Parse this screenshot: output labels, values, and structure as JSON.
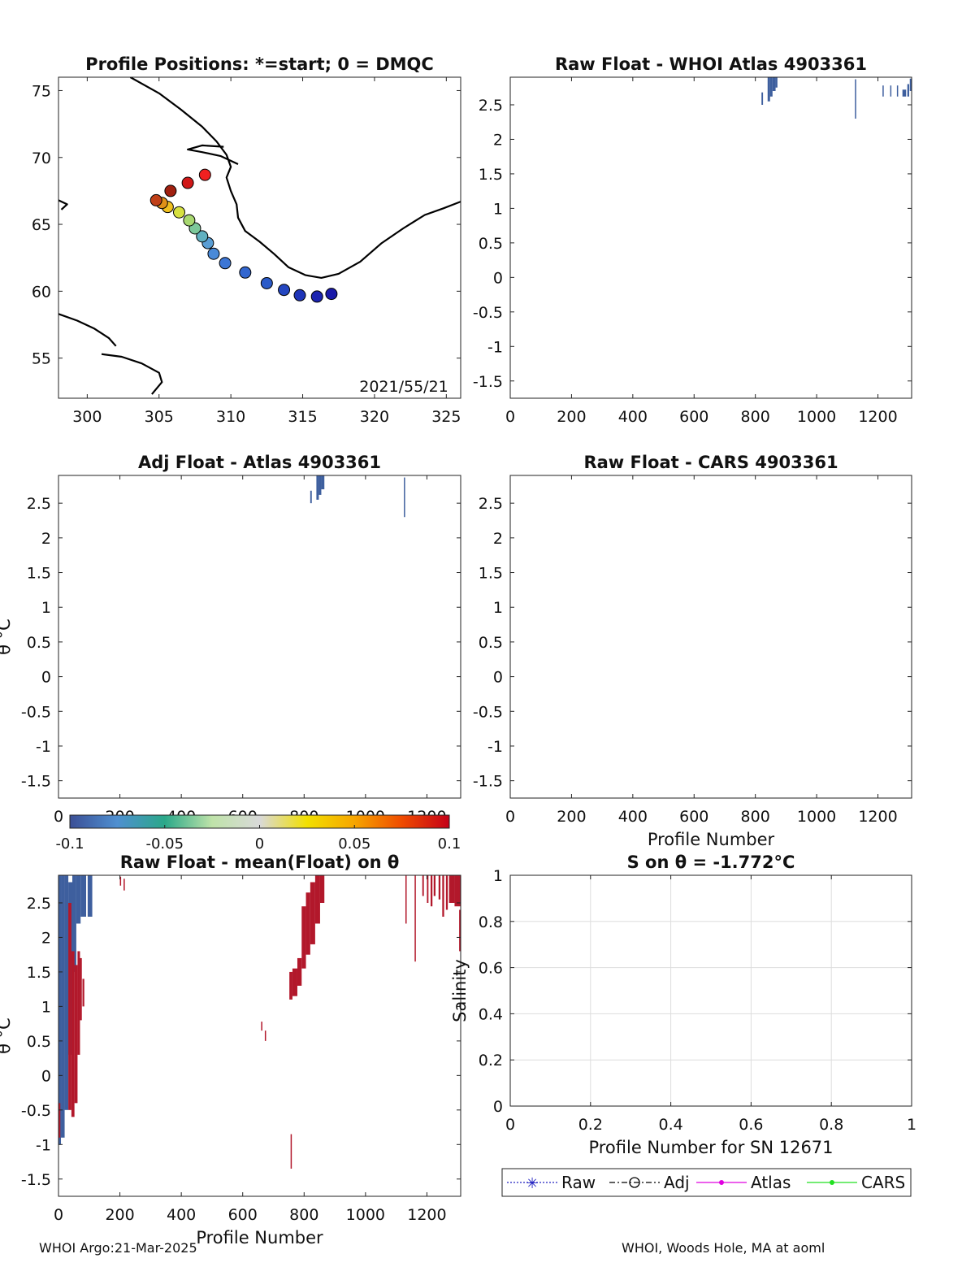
{
  "footer": {
    "left": "WHOI Argo:21-Mar-2025",
    "right": "WHOI, Woods Hole, MA at aoml"
  },
  "colors": {
    "negative": "#3e5f9e",
    "positive": "#b2182b",
    "map_line": "#000000",
    "grid": "#dddddd"
  },
  "colorbar": {
    "min": -0.1,
    "max": 0.1,
    "tick_values": [
      -0.1,
      -0.05,
      0,
      0.05,
      0.1
    ],
    "tick_labels": [
      "-0.1",
      "-0.05",
      "0",
      "0.05",
      "0.1"
    ],
    "stops": [
      "#3b4f96",
      "#4f8fd0",
      "#2aa889",
      "#bfe3a9",
      "#d9d9d9",
      "#f2e000",
      "#f6a500",
      "#ef4b00",
      "#c40018"
    ]
  },
  "chart_data": [
    {
      "id": "map",
      "type": "scatter",
      "title": "Profile Positions: *=start; 0 = DMQC",
      "xlabel": "",
      "ylabel": "",
      "xlim": [
        298,
        326
      ],
      "ylim": [
        52,
        76
      ],
      "xticks": [
        300,
        305,
        310,
        315,
        320,
        325
      ],
      "xtick_labels": [
        "300",
        "305",
        "310",
        "315",
        "320",
        "325"
      ],
      "yticks": [
        55,
        60,
        65,
        70,
        75
      ],
      "ytick_labels": [
        "55",
        "60",
        "65",
        "70",
        "75"
      ],
      "annotation": "2021/55/21",
      "coastline": [
        [
          [
            303,
            76
          ],
          [
            305,
            74.8
          ],
          [
            306.5,
            73.6
          ],
          [
            308,
            72.3
          ],
          [
            309,
            71.2
          ],
          [
            309.7,
            70.2
          ],
          [
            310,
            69.3
          ],
          [
            309.7,
            68.5
          ],
          [
            310,
            67.5
          ],
          [
            310.4,
            66.5
          ],
          [
            310.5,
            65.5
          ],
          [
            311,
            64.5
          ],
          [
            312,
            63.7
          ],
          [
            313,
            62.8
          ],
          [
            314,
            61.8
          ],
          [
            315.2,
            61.2
          ],
          [
            316.3,
            61.0
          ],
          [
            317.5,
            61.3
          ],
          [
            319,
            62.2
          ],
          [
            320.5,
            63.6
          ],
          [
            322,
            64.7
          ],
          [
            323.5,
            65.7
          ],
          [
            324.8,
            66.2
          ],
          [
            326,
            66.7
          ]
        ],
        [
          [
            310.5,
            69.5
          ],
          [
            309.3,
            70.1
          ],
          [
            308,
            70.4
          ],
          [
            307,
            70.6
          ],
          [
            308,
            70.9
          ],
          [
            309.5,
            70.8
          ]
        ],
        [
          [
            298,
            58.3
          ],
          [
            299.3,
            57.8
          ],
          [
            300.5,
            57.2
          ],
          [
            301.5,
            56.5
          ],
          [
            302,
            55.9
          ]
        ],
        [
          [
            301,
            55.3
          ],
          [
            302.4,
            55.1
          ],
          [
            303.8,
            54.6
          ],
          [
            305,
            53.9
          ],
          [
            305.2,
            53.2
          ],
          [
            304.5,
            52.3
          ]
        ],
        [
          [
            298,
            66.8
          ],
          [
            298.6,
            66.5
          ],
          [
            298.2,
            66.1
          ]
        ]
      ],
      "track": {
        "lon": [
          317.0,
          316.0,
          314.8,
          313.7,
          312.5,
          311.0,
          309.6,
          308.8,
          308.4,
          308.0,
          307.5,
          307.1,
          306.4,
          305.6,
          305.2,
          304.8,
          305.8,
          307.0,
          308.2
        ],
        "lat": [
          59.8,
          59.6,
          59.7,
          60.1,
          60.6,
          61.4,
          62.1,
          62.8,
          63.6,
          64.1,
          64.7,
          65.3,
          65.9,
          66.3,
          66.6,
          66.8,
          67.5,
          68.1,
          68.7
        ],
        "colors": [
          "#1a1aa8",
          "#1c24b0",
          "#1e34b8",
          "#2446c0",
          "#2a5ac8",
          "#3266cf",
          "#3c76d6",
          "#4a8ad8",
          "#5a9ed4",
          "#60b0c0",
          "#7cc89a",
          "#a8d870",
          "#d6e040",
          "#f0c020",
          "#e09018",
          "#c04018",
          "#a02010",
          "#d01818",
          "#f02020"
        ]
      }
    },
    {
      "id": "raw_atlas",
      "type": "heatmap",
      "title": "Raw Float - WHOI Atlas  4903361",
      "xlabel": "",
      "ylabel": "",
      "xlim": [
        0,
        1310
      ],
      "ylim": [
        -1.75,
        2.9
      ],
      "xticks": [
        0,
        200,
        400,
        600,
        800,
        1000,
        1200
      ],
      "xtick_labels": [
        "0",
        "200",
        "400",
        "600",
        "800",
        "1000",
        "1200"
      ],
      "yticks": [
        -1.5,
        -1,
        -0.5,
        0,
        0.5,
        1,
        1.5,
        2,
        2.5
      ],
      "ytick_labels": [
        "-1.5",
        "-1",
        "-0.5",
        "0",
        "0.5",
        "1",
        "1.5",
        "2",
        "2.5"
      ],
      "segments": [
        {
          "x0": 820,
          "x1": 825,
          "y0": 2.5,
          "y1": 2.68,
          "c": "n"
        },
        {
          "x0": 840,
          "x1": 848,
          "y0": 2.55,
          "y1": 2.9,
          "c": "n"
        },
        {
          "x0": 848,
          "x1": 856,
          "y0": 2.62,
          "y1": 2.9,
          "c": "n"
        },
        {
          "x0": 856,
          "x1": 866,
          "y0": 2.7,
          "y1": 2.9,
          "c": "n"
        },
        {
          "x0": 866,
          "x1": 872,
          "y0": 2.75,
          "y1": 2.9,
          "c": "n"
        },
        {
          "x0": 1125,
          "x1": 1128,
          "y0": 2.3,
          "y1": 2.87,
          "c": "n"
        },
        {
          "x0": 1215,
          "x1": 1218,
          "y0": 2.62,
          "y1": 2.78,
          "c": "n"
        },
        {
          "x0": 1240,
          "x1": 1243,
          "y0": 2.62,
          "y1": 2.78,
          "c": "n"
        },
        {
          "x0": 1262,
          "x1": 1265,
          "y0": 2.62,
          "y1": 2.78,
          "c": "n"
        },
        {
          "x0": 1280,
          "x1": 1292,
          "y0": 2.62,
          "y1": 2.72,
          "c": "n"
        },
        {
          "x0": 1296,
          "x1": 1302,
          "y0": 2.62,
          "y1": 2.8,
          "c": "n"
        },
        {
          "x0": 1304,
          "x1": 1310,
          "y0": 2.7,
          "y1": 2.88,
          "c": "n"
        }
      ]
    },
    {
      "id": "adj_atlas",
      "type": "heatmap",
      "title": "Adj Float - Atlas  4903361",
      "xlabel": "",
      "ylabel": "θ °C",
      "xlim": [
        0,
        1310
      ],
      "ylim": [
        -1.75,
        2.9
      ],
      "xticks": [
        0,
        200,
        400,
        600,
        800,
        1000,
        1200
      ],
      "xtick_labels": [
        "0",
        "200",
        "400",
        "600",
        "800",
        "1000",
        "1200"
      ],
      "yticks": [
        -1.5,
        -1,
        -0.5,
        0,
        0.5,
        1,
        1.5,
        2,
        2.5
      ],
      "ytick_labels": [
        "-1.5",
        "-1",
        "-0.5",
        "0",
        "0.5",
        "1",
        "1.5",
        "2",
        "2.5"
      ],
      "segments": [
        {
          "x0": 820,
          "x1": 825,
          "y0": 2.5,
          "y1": 2.68,
          "c": "n"
        },
        {
          "x0": 840,
          "x1": 848,
          "y0": 2.55,
          "y1": 2.9,
          "c": "n"
        },
        {
          "x0": 848,
          "x1": 856,
          "y0": 2.62,
          "y1": 2.9,
          "c": "n"
        },
        {
          "x0": 856,
          "x1": 866,
          "y0": 2.7,
          "y1": 2.9,
          "c": "n"
        },
        {
          "x0": 1125,
          "x1": 1128,
          "y0": 2.3,
          "y1": 2.87,
          "c": "n"
        }
      ]
    },
    {
      "id": "raw_cars",
      "type": "heatmap",
      "title": "Raw Float - CARS  4903361",
      "xlabel": "Profile Number",
      "ylabel": "",
      "xlim": [
        0,
        1310
      ],
      "ylim": [
        -1.75,
        2.9
      ],
      "xticks": [
        0,
        200,
        400,
        600,
        800,
        1000,
        1200
      ],
      "xtick_labels": [
        "0",
        "200",
        "400",
        "600",
        "800",
        "1000",
        "1200"
      ],
      "yticks": [
        -1.5,
        -1,
        -0.5,
        0,
        0.5,
        1,
        1.5,
        2,
        2.5
      ],
      "ytick_labels": [
        "-1.5",
        "-1",
        "-0.5",
        "0",
        "0.5",
        "1",
        "1.5",
        "2",
        "2.5"
      ],
      "segments": []
    },
    {
      "id": "raw_mean",
      "type": "heatmap",
      "title": "Raw Float - mean(Float) on θ",
      "xlabel": "Profile Number",
      "ylabel": "θ °C",
      "xlim": [
        0,
        1310
      ],
      "ylim": [
        -1.75,
        2.9
      ],
      "xticks": [
        0,
        200,
        400,
        600,
        800,
        1000,
        1200
      ],
      "xtick_labels": [
        "0",
        "200",
        "400",
        "600",
        "800",
        "1000",
        "1200"
      ],
      "yticks": [
        -1.5,
        -1,
        -0.5,
        0,
        0.5,
        1,
        1.5,
        2,
        2.5
      ],
      "ytick_labels": [
        "-1.5",
        "-1",
        "-0.5",
        "0",
        "0.5",
        "1",
        "1.5",
        "2",
        "2.5"
      ],
      "segments": [
        {
          "x0": 0,
          "x1": 8,
          "y0": -1.0,
          "y1": 2.9,
          "c": "n"
        },
        {
          "x0": 8,
          "x1": 20,
          "y0": -0.9,
          "y1": 2.9,
          "c": "n"
        },
        {
          "x0": 20,
          "x1": 32,
          "y0": -0.5,
          "y1": 2.9,
          "c": "n"
        },
        {
          "x0": 32,
          "x1": 45,
          "y0": 0.3,
          "y1": 2.8,
          "c": "n"
        },
        {
          "x0": 45,
          "x1": 58,
          "y0": 1.5,
          "y1": 2.9,
          "c": "n"
        },
        {
          "x0": 58,
          "x1": 72,
          "y0": 2.2,
          "y1": 2.9,
          "c": "n"
        },
        {
          "x0": 72,
          "x1": 90,
          "y0": 2.3,
          "y1": 2.9,
          "c": "n"
        },
        {
          "x0": 95,
          "x1": 110,
          "y0": 2.3,
          "y1": 2.9,
          "c": "n"
        },
        {
          "x0": 0,
          "x1": 6,
          "y0": -0.9,
          "y1": -0.4,
          "c": "p"
        },
        {
          "x0": 32,
          "x1": 42,
          "y0": -0.5,
          "y1": 2.5,
          "c": "p"
        },
        {
          "x0": 42,
          "x1": 52,
          "y0": -0.6,
          "y1": 1.8,
          "c": "p"
        },
        {
          "x0": 52,
          "x1": 62,
          "y0": -0.4,
          "y1": 1.6,
          "c": "p"
        },
        {
          "x0": 62,
          "x1": 70,
          "y0": 0.3,
          "y1": 1.8,
          "c": "p"
        },
        {
          "x0": 70,
          "x1": 76,
          "y0": 0.8,
          "y1": 1.7,
          "c": "p"
        },
        {
          "x0": 78,
          "x1": 84,
          "y0": 1.0,
          "y1": 1.4,
          "c": "p"
        },
        {
          "x0": 200,
          "x1": 204,
          "y0": 2.75,
          "y1": 2.88,
          "c": "p"
        },
        {
          "x0": 212,
          "x1": 216,
          "y0": 2.68,
          "y1": 2.85,
          "c": "p"
        },
        {
          "x0": 660,
          "x1": 664,
          "y0": 0.65,
          "y1": 0.78,
          "c": "p"
        },
        {
          "x0": 672,
          "x1": 676,
          "y0": 0.5,
          "y1": 0.65,
          "c": "p"
        },
        {
          "x0": 752,
          "x1": 762,
          "y0": 1.1,
          "y1": 1.5,
          "c": "p"
        },
        {
          "x0": 762,
          "x1": 778,
          "y0": 1.15,
          "y1": 1.55,
          "c": "p"
        },
        {
          "x0": 778,
          "x1": 792,
          "y0": 1.3,
          "y1": 1.7,
          "c": "p"
        },
        {
          "x0": 792,
          "x1": 806,
          "y0": 1.55,
          "y1": 2.45,
          "c": "p"
        },
        {
          "x0": 806,
          "x1": 820,
          "y0": 1.75,
          "y1": 2.65,
          "c": "p"
        },
        {
          "x0": 820,
          "x1": 836,
          "y0": 1.9,
          "y1": 2.8,
          "c": "p"
        },
        {
          "x0": 836,
          "x1": 852,
          "y0": 2.2,
          "y1": 2.9,
          "c": "p"
        },
        {
          "x0": 852,
          "x1": 866,
          "y0": 2.5,
          "y1": 2.9,
          "c": "p"
        },
        {
          "x0": 756,
          "x1": 758,
          "y0": -1.35,
          "y1": -0.85,
          "c": "p"
        },
        {
          "x0": 1130,
          "x1": 1134,
          "y0": 2.2,
          "y1": 2.9,
          "c": "p"
        },
        {
          "x0": 1160,
          "x1": 1163,
          "y0": 1.65,
          "y1": 2.9,
          "c": "p"
        },
        {
          "x0": 1185,
          "x1": 1190,
          "y0": 2.6,
          "y1": 2.9,
          "c": "p"
        },
        {
          "x0": 1200,
          "x1": 1205,
          "y0": 2.5,
          "y1": 2.9,
          "c": "p"
        },
        {
          "x0": 1212,
          "x1": 1218,
          "y0": 2.45,
          "y1": 2.9,
          "c": "p"
        },
        {
          "x0": 1222,
          "x1": 1228,
          "y0": 2.6,
          "y1": 2.9,
          "c": "p"
        },
        {
          "x0": 1238,
          "x1": 1244,
          "y0": 2.55,
          "y1": 2.9,
          "c": "p"
        },
        {
          "x0": 1250,
          "x1": 1256,
          "y0": 2.3,
          "y1": 2.9,
          "c": "p"
        },
        {
          "x0": 1262,
          "x1": 1268,
          "y0": 2.4,
          "y1": 2.9,
          "c": "p"
        },
        {
          "x0": 1272,
          "x1": 1290,
          "y0": 2.5,
          "y1": 2.9,
          "c": "p"
        },
        {
          "x0": 1290,
          "x1": 1310,
          "y0": 2.45,
          "y1": 2.9,
          "c": "p"
        },
        {
          "x0": 1305,
          "x1": 1310,
          "y0": 1.8,
          "y1": 2.4,
          "c": "p"
        }
      ]
    },
    {
      "id": "salinity",
      "type": "line",
      "title": "S on θ = -1.772°C",
      "xlabel": "Profile Number for SN 12671",
      "ylabel": "Salinity",
      "xlim": [
        0,
        1
      ],
      "ylim": [
        0,
        1
      ],
      "xticks": [
        0,
        0.2,
        0.4,
        0.6,
        0.8,
        1
      ],
      "xtick_labels": [
        "0",
        "0.2",
        "0.4",
        "0.6",
        "0.8",
        "1"
      ],
      "yticks": [
        0,
        0.2,
        0.4,
        0.6,
        0.8,
        1
      ],
      "ytick_labels": [
        "0",
        "0.2",
        "0.4",
        "0.6",
        "0.8",
        "1"
      ],
      "grid": true,
      "legend": {
        "placement": "bottom",
        "entries": [
          {
            "name": "Raw",
            "color": "#2020c0",
            "style": "dotted",
            "marker": "star"
          },
          {
            "name": "Adj",
            "color": "#000000",
            "style": "dashdot",
            "marker": "circle"
          },
          {
            "name": "Atlas",
            "color": "#e000e0",
            "style": "solid",
            "marker": "dot"
          },
          {
            "name": "CARS",
            "color": "#20e020",
            "style": "solid",
            "marker": "dot"
          }
        ]
      },
      "series": []
    }
  ]
}
